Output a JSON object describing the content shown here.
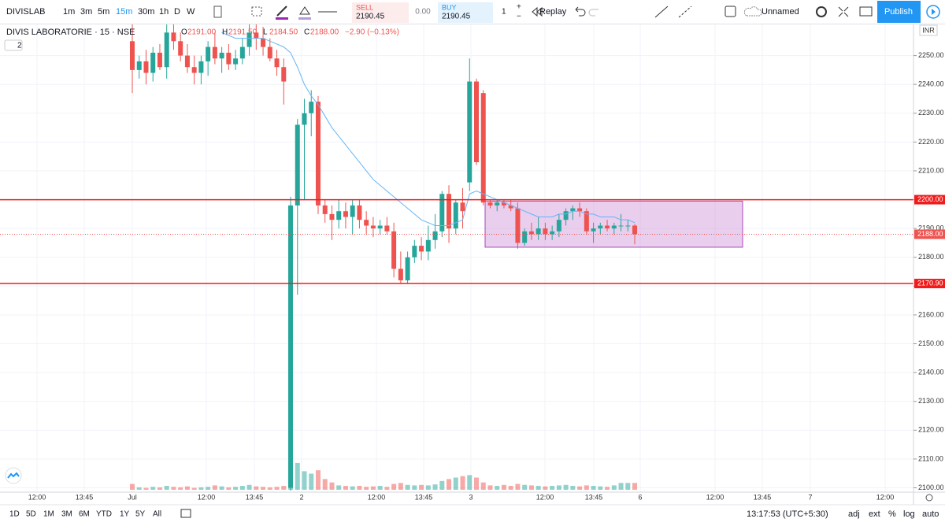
{
  "toolbar": {
    "symbol": "DIVISLAB",
    "intervals": [
      "1m",
      "3m",
      "5m",
      "15m",
      "30m",
      "1h",
      "D",
      "W"
    ],
    "sell_label": "SELL",
    "sell_price": "2190.45",
    "spread": "0.00",
    "buy_label": "BUY",
    "buy_price": "2190.45",
    "quantity": "1",
    "replay": "Replay",
    "layout_name": "Unnamed",
    "publish": "Publish"
  },
  "legend": {
    "name": "DIVIS LABORATORIE · 15 · NSE",
    "ohlc": [
      {
        "k": "O",
        "v": "2191.00"
      },
      {
        "k": "H",
        "v": "2191.50"
      },
      {
        "k": "L",
        "v": "2184.50"
      },
      {
        "k": "C",
        "v": "2188.00"
      }
    ],
    "change": "−2.90 (−0.13%)",
    "indicator_count": "2"
  },
  "chart_data": {
    "type": "candlestick",
    "currency": "INR",
    "up_color": "#26a69a",
    "down_color": "#ef5350",
    "ma_color": "#64b5f6",
    "ylim": [
      2098.5,
      2260
    ],
    "yticks": [
      {
        "value": 2100,
        "label": "2100.00"
      },
      {
        "value": 2110,
        "label": "2110.00"
      },
      {
        "value": 2120,
        "label": "2120.00"
      },
      {
        "value": 2130,
        "label": "2130.00"
      },
      {
        "value": 2140,
        "label": "2140.00"
      },
      {
        "value": 2150,
        "label": "2150.00"
      },
      {
        "value": 2160,
        "label": "2160.00"
      },
      {
        "value": 2170,
        "label": "2170.00"
      },
      {
        "value": 2180,
        "label": "2180.00"
      },
      {
        "value": 2190,
        "label": "2190.00"
      },
      {
        "value": 2200,
        "label": "2200.00"
      },
      {
        "value": 2210,
        "label": "2210.00"
      },
      {
        "value": 2220,
        "label": "2220.00"
      },
      {
        "value": 2230,
        "label": "2230.00"
      },
      {
        "value": 2240,
        "label": "2240.00"
      },
      {
        "value": 2250,
        "label": "2250.00"
      }
    ],
    "time_labels": [
      "12:00",
      "13:45",
      "Jul",
      "12:00",
      "13:45",
      "2",
      "12:00",
      "13:45",
      "3",
      "12:00",
      "13:45",
      "6",
      "12:00",
      "13:45",
      "7",
      "12:00"
    ],
    "candles": [
      [
        2255,
        2262,
        2237,
        2245
      ],
      [
        2245,
        2250,
        2242,
        2248
      ],
      [
        2248,
        2252,
        2240,
        2244
      ],
      [
        2244,
        2253,
        2241,
        2251
      ],
      [
        2251,
        2254,
        2245,
        2246
      ],
      [
        2246,
        2262,
        2242,
        2258
      ],
      [
        2258,
        2262,
        2252,
        2255
      ],
      [
        2255,
        2258,
        2248,
        2250
      ],
      [
        2250,
        2254,
        2244,
        2246
      ],
      [
        2246,
        2250,
        2240,
        2244
      ],
      [
        2244,
        2250,
        2240,
        2248
      ],
      [
        2248,
        2255,
        2243,
        2253
      ],
      [
        2253,
        2258,
        2247,
        2249
      ],
      [
        2249,
        2253,
        2244,
        2251
      ],
      [
        2251,
        2254,
        2245,
        2247
      ],
      [
        2247,
        2252,
        2245,
        2249
      ],
      [
        2249,
        2256,
        2247,
        2253
      ],
      [
        2253,
        2262,
        2250,
        2258
      ],
      [
        2258,
        2262,
        2252,
        2256
      ],
      [
        2256,
        2260,
        2250,
        2253
      ],
      [
        2253,
        2256,
        2248,
        2249
      ],
      [
        2249,
        2252,
        2243,
        2246
      ],
      [
        2246,
        2249,
        2233,
        2241
      ],
      [
        2100,
        2201,
        2099,
        2198
      ],
      [
        2198,
        2228,
        2167,
        2226
      ],
      [
        2226,
        2235,
        2200,
        2230
      ],
      [
        2230,
        2238,
        2222,
        2234
      ],
      [
        2234,
        2236,
        2195,
        2198
      ],
      [
        2198,
        2200,
        2192,
        2195
      ],
      [
        2195,
        2198,
        2186,
        2193
      ],
      [
        2193,
        2200,
        2190,
        2196
      ],
      [
        2196,
        2199,
        2190,
        2194
      ],
      [
        2194,
        2200,
        2188,
        2198
      ],
      [
        2198,
        2200,
        2190,
        2193
      ],
      [
        2193,
        2196,
        2188,
        2191
      ],
      [
        2191,
        2194,
        2187,
        2190
      ],
      [
        2190,
        2193,
        2188,
        2191
      ],
      [
        2191,
        2194,
        2188,
        2189
      ],
      [
        2189,
        2192,
        2173,
        2176
      ],
      [
        2176,
        2182,
        2171,
        2172
      ],
      [
        2172,
        2182,
        2171,
        2180
      ],
      [
        2180,
        2186,
        2178,
        2184
      ],
      [
        2184,
        2187,
        2179,
        2182
      ],
      [
        2182,
        2191,
        2179,
        2186
      ],
      [
        2186,
        2195,
        2183,
        2189
      ],
      [
        2189,
        2203,
        2187,
        2202
      ],
      [
        2202,
        2205,
        2185,
        2190
      ],
      [
        2190,
        2200,
        2188,
        2199
      ],
      [
        2199,
        2204,
        2190,
        2196
      ],
      [
        2206,
        2249,
        2203,
        2241
      ],
      [
        2241,
        2242,
        2212,
        2213
      ],
      [
        2237,
        2238,
        2198,
        2199
      ],
      [
        2199,
        2200,
        2197,
        2198
      ],
      [
        2198,
        2200,
        2196,
        2199
      ],
      [
        2199,
        2200,
        2197,
        2198
      ],
      [
        2198,
        2200,
        2196,
        2197
      ],
      [
        2197,
        2199,
        2183,
        2185
      ],
      [
        2185,
        2190,
        2184,
        2189
      ],
      [
        2189,
        2192,
        2186,
        2188
      ],
      [
        2188,
        2194,
        2186,
        2190
      ],
      [
        2190,
        2192,
        2186,
        2188
      ],
      [
        2188,
        2191,
        2186,
        2189
      ],
      [
        2189,
        2195,
        2187,
        2193
      ],
      [
        2193,
        2197,
        2191,
        2196
      ],
      [
        2196,
        2198,
        2193,
        2197
      ],
      [
        2197,
        2199,
        2194,
        2196
      ],
      [
        2196,
        2197,
        2188,
        2189
      ],
      [
        2189,
        2192,
        2185,
        2190
      ],
      [
        2190,
        2192,
        2188,
        2191
      ],
      [
        2191,
        2193,
        2189,
        2190
      ],
      [
        2190,
        2192,
        2188,
        2191
      ],
      [
        2191,
        2195,
        2189,
        2191
      ],
      [
        2191,
        2193,
        2189,
        2191
      ],
      [
        2191,
        2191.5,
        2184.5,
        2188
      ]
    ],
    "volume": [
      12,
      5,
      4,
      6,
      5,
      8,
      6,
      5,
      7,
      4,
      5,
      6,
      9,
      7,
      5,
      6,
      8,
      10,
      7,
      6,
      5,
      6,
      8,
      100,
      55,
      38,
      33,
      40,
      22,
      15,
      9,
      8,
      7,
      8,
      6,
      7,
      8,
      6,
      12,
      14,
      10,
      9,
      10,
      9,
      11,
      18,
      22,
      25,
      28,
      30,
      25,
      15,
      9,
      8,
      10,
      8,
      12,
      10,
      9,
      8,
      7,
      8,
      9,
      10,
      8,
      7,
      9,
      8,
      7,
      6,
      9,
      14,
      14,
      14
    ],
    "ma": [
      null,
      null,
      null,
      null,
      null,
      null,
      null,
      null,
      null,
      null,
      null,
      null,
      null,
      2258,
      2257,
      2256,
      2256,
      2256,
      2256,
      2256,
      2255,
      2254,
      2253,
      2251,
      2246,
      2240,
      2236,
      2233,
      2229,
      2225,
      2222,
      2219,
      2216,
      2213,
      2210,
      2207,
      2205,
      2203,
      2201,
      2199,
      2197,
      2195,
      2193,
      2192,
      2191,
      2191,
      2191,
      2192,
      2193,
      2202,
      2203,
      2202,
      2201,
      2200,
      2199,
      2198,
      2197,
      2196,
      2195,
      2194,
      2194,
      2194,
      2195,
      2195,
      2196,
      2196,
      2195,
      2195,
      2194,
      2194,
      2194,
      2193,
      2193,
      2192
    ],
    "hlines": [
      {
        "value": 2200,
        "label": "2200.00",
        "color": "#f21b1b"
      },
      {
        "value": 2170.9,
        "label": "2170.90",
        "color": "#f21b1b"
      }
    ],
    "last_price": {
      "value": 2188,
      "label": "2188.00",
      "color": "#ef5350"
    },
    "zone": {
      "top": 2199.5,
      "bottom": 2183.5,
      "color": "#ce93d8"
    }
  },
  "bottom_bar": {
    "ranges": [
      "1D",
      "5D",
      "1M",
      "3M",
      "6M",
      "YTD",
      "1Y",
      "5Y",
      "All"
    ],
    "clock": "13:17:53 (UTC+5:30)",
    "options": [
      "adj",
      "ext",
      "%",
      "log",
      "auto"
    ]
  }
}
